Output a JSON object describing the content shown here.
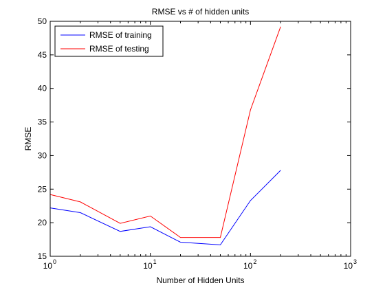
{
  "chart_data": {
    "type": "line",
    "title": "RMSE vs # of hidden units",
    "xlabel": "Number of Hidden Units",
    "ylabel": "RMSE",
    "xscale": "log",
    "xlim": [
      1,
      1000
    ],
    "ylim": [
      15,
      50
    ],
    "xticks": [
      {
        "value": 1,
        "base": "10",
        "exp": "0"
      },
      {
        "value": 10,
        "base": "10",
        "exp": "1"
      },
      {
        "value": 100,
        "base": "10",
        "exp": "2"
      },
      {
        "value": 1000,
        "base": "10",
        "exp": "3"
      }
    ],
    "yticks": [
      15,
      20,
      25,
      30,
      35,
      40,
      45,
      50
    ],
    "grid": false,
    "legend_position": "top-left",
    "series": [
      {
        "name": "RMSE of training",
        "color": "#0000ff",
        "x": [
          1,
          2,
          5,
          10,
          20,
          50,
          100,
          200
        ],
        "y": [
          22.2,
          21.5,
          18.7,
          19.4,
          17.1,
          16.7,
          23.3,
          27.8
        ]
      },
      {
        "name": "RMSE of testing",
        "color": "#ff0000",
        "x": [
          1,
          2,
          5,
          10,
          20,
          50,
          100,
          200
        ],
        "y": [
          24.2,
          23.1,
          19.9,
          21.0,
          17.8,
          17.8,
          36.8,
          49.2
        ]
      }
    ]
  }
}
